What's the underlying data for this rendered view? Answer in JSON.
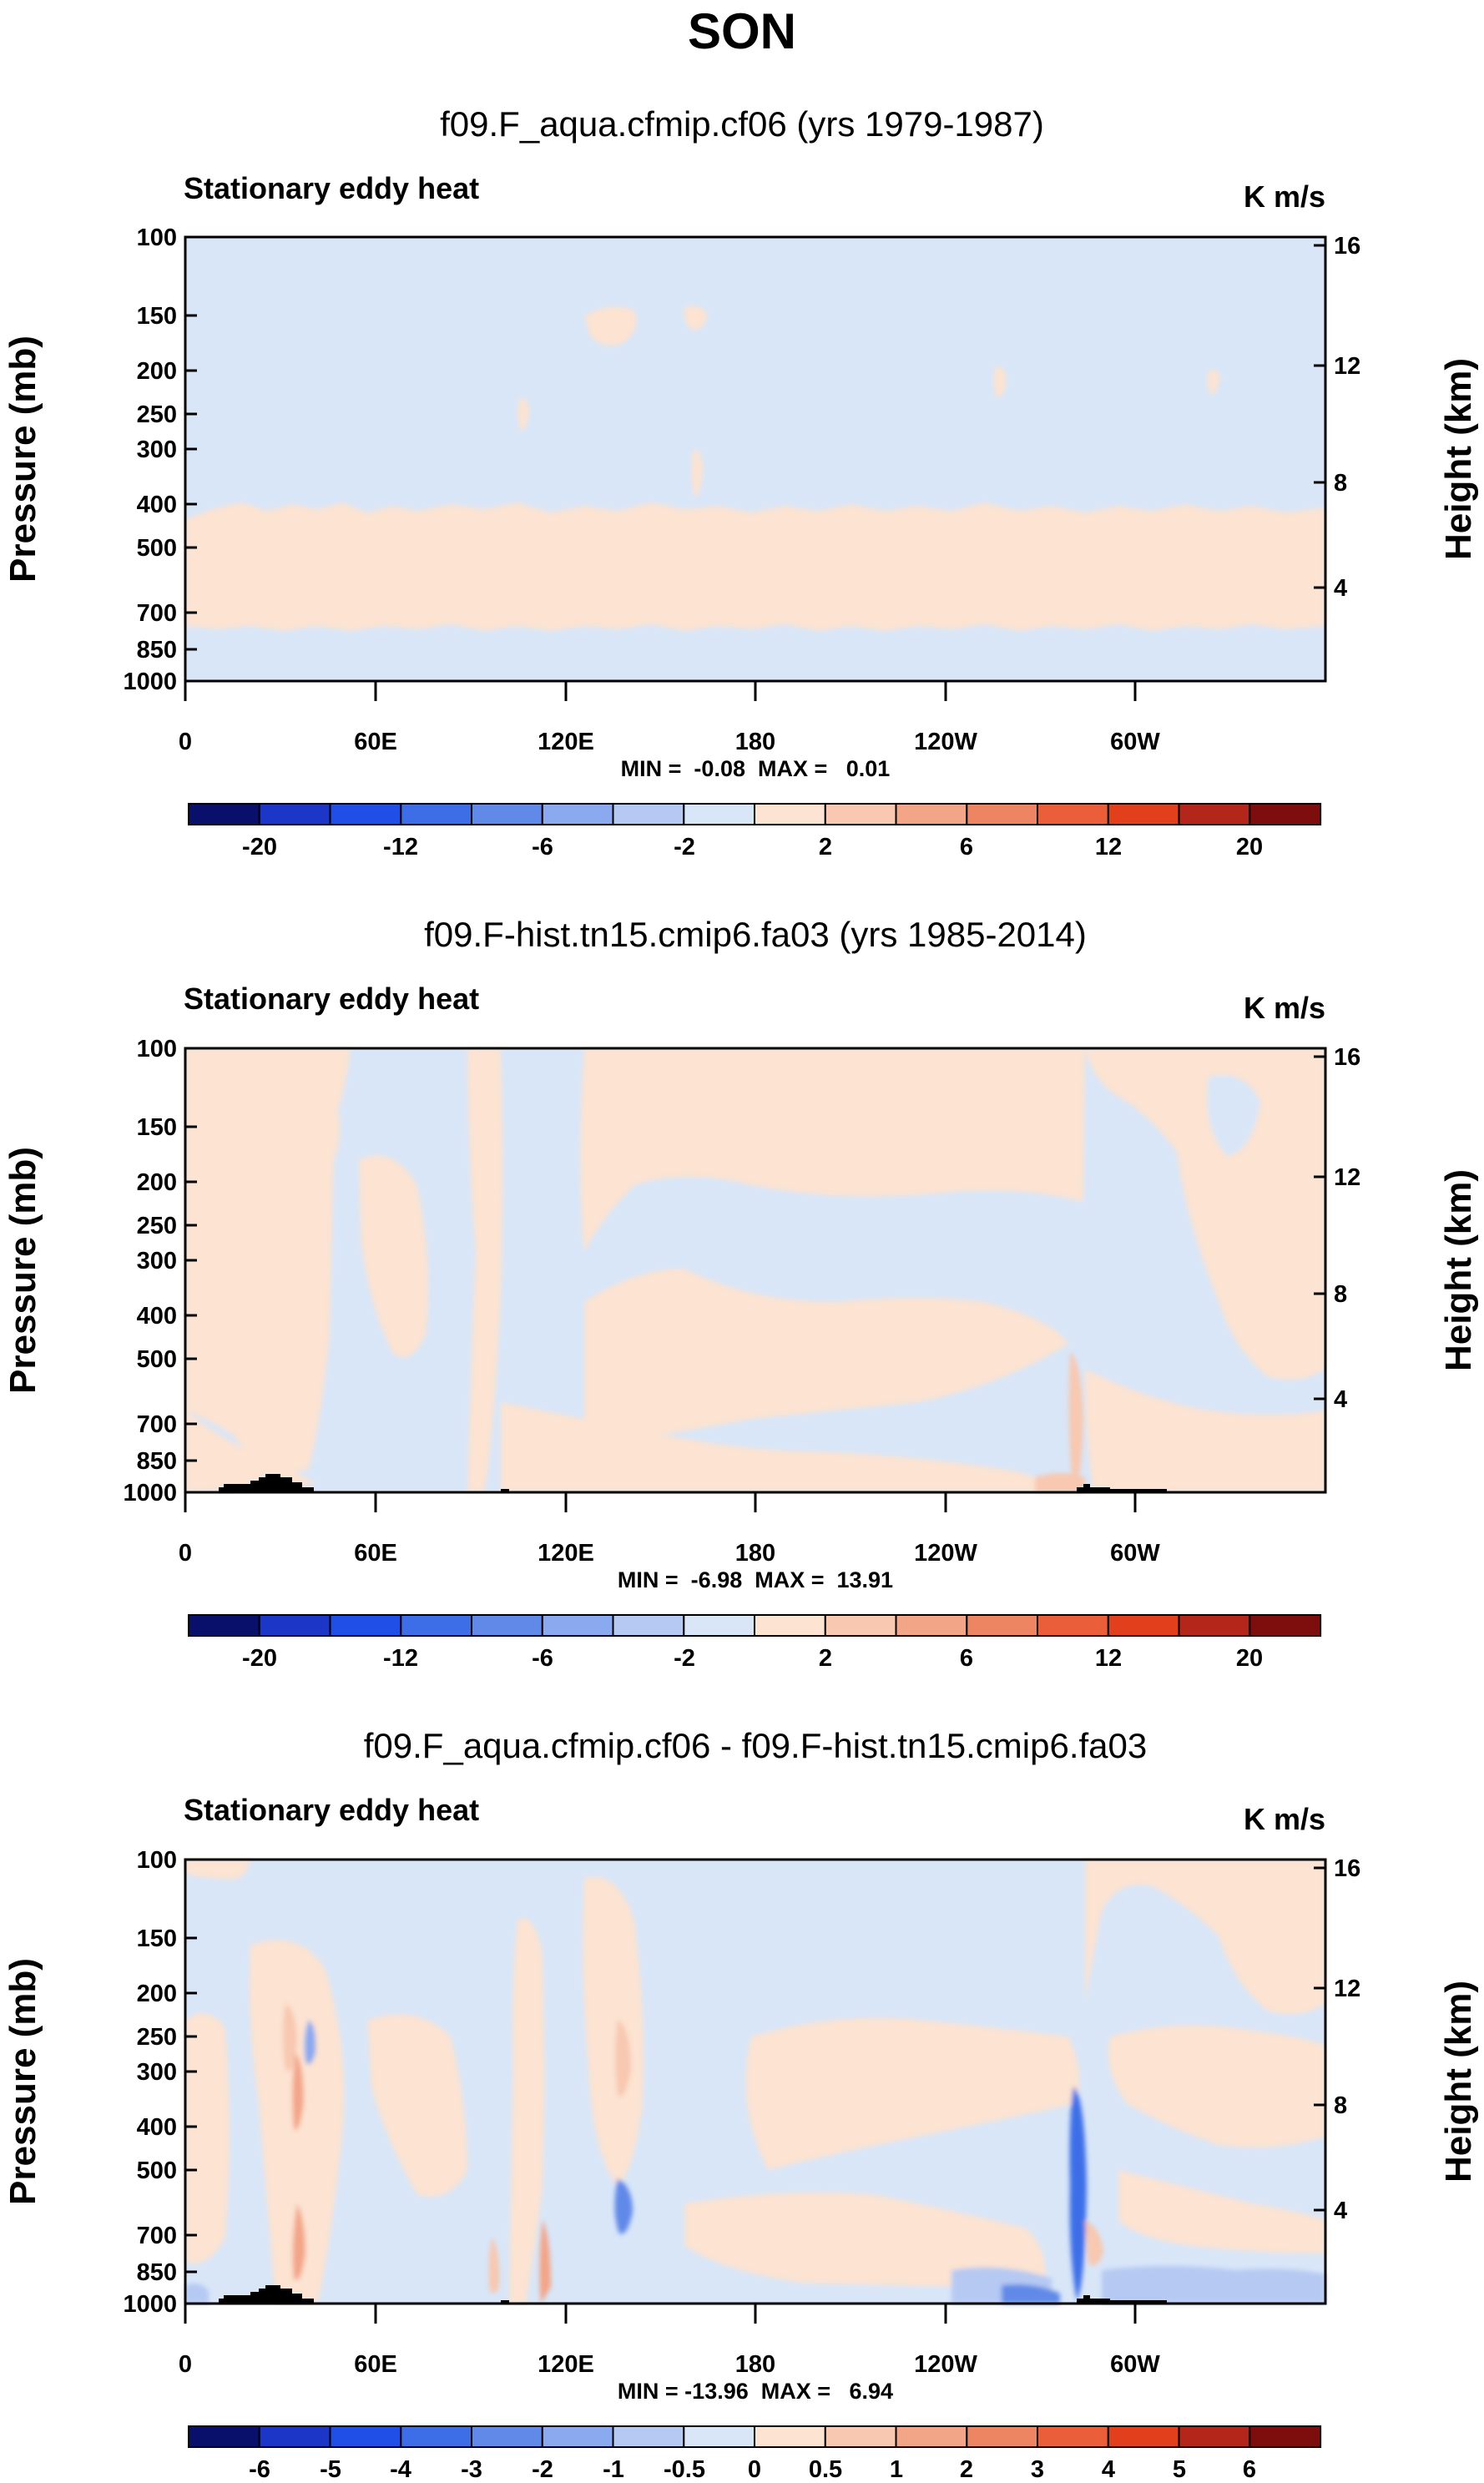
{
  "figure_title": "SON",
  "chart_data": [
    {
      "type": "heatmap",
      "title": "f09.F_aqua.cfmip.cf06 (yrs 1979-1987)",
      "variable": "Stationary eddy heat",
      "units": "K m/s",
      "ylabel": "Pressure (mb)",
      "ylabel_right": "Height (km)",
      "x_ticks": [
        "0",
        "60E",
        "120E",
        "180",
        "120W",
        "60W"
      ],
      "y_ticks": [
        "100",
        "150",
        "200",
        "250",
        "300",
        "400",
        "500",
        "700",
        "850",
        "1000"
      ],
      "y_ticks_right": [
        "16",
        "12",
        "8",
        "4"
      ],
      "stats": "MIN =  -0.08  MAX =   0.01",
      "colorbar_labels": [
        "-20",
        "-12",
        "-6",
        "-2",
        "2",
        "6",
        "12",
        "20"
      ],
      "colorbar_colors": [
        "#08106b",
        "#1c36c8",
        "#1f4fe6",
        "#3d6ee8",
        "#6189e8",
        "#8aa9ee",
        "#b5c9f3",
        "#d8e6f8",
        "#fce3d2",
        "#f8c8b0",
        "#f3a588",
        "#ee8562",
        "#ea5e3a",
        "#e23f1c",
        "#b4261a",
        "#7e0e0e"
      ],
      "regions": [
        {
          "name": "positive band",
          "color": "#fce3d2",
          "p_top": 460,
          "p_bottom": 790,
          "lon_start": 0,
          "lon_end": 360
        },
        {
          "name": "background",
          "color": "#d8e6f8",
          "value": 0
        }
      ]
    },
    {
      "type": "heatmap",
      "title": "f09.F-hist.tn15.cmip6.fa03 (yrs 1985-2014)",
      "variable": "Stationary eddy heat",
      "units": "K m/s",
      "ylabel": "Pressure (mb)",
      "ylabel_right": "Height (km)",
      "x_ticks": [
        "0",
        "60E",
        "120E",
        "180",
        "120W",
        "60W"
      ],
      "y_ticks": [
        "100",
        "150",
        "200",
        "250",
        "300",
        "400",
        "500",
        "700",
        "850",
        "1000"
      ],
      "y_ticks_right": [
        "16",
        "12",
        "8",
        "4"
      ],
      "stats": "MIN =  -6.98  MAX =  13.91",
      "colorbar_labels": [
        "-20",
        "-12",
        "-6",
        "-2",
        "2",
        "6",
        "12",
        "20"
      ],
      "colorbar_colors": [
        "#08106b",
        "#1c36c8",
        "#1f4fe6",
        "#3d6ee8",
        "#6189e8",
        "#8aa9ee",
        "#b5c9f3",
        "#d8e6f8",
        "#fce3d2",
        "#f8c8b0",
        "#f3a588",
        "#ee8562",
        "#ea5e3a",
        "#e23f1c",
        "#b4261a",
        "#7e0e0e"
      ],
      "regions": [
        {
          "name": "positive columns",
          "color": "#fce3d2",
          "lon_ranges": [
            [
              5,
              50
            ],
            [
              85,
              96
            ],
            [
              115,
              160
            ],
            [
              165,
              240
            ],
            [
              290,
              360
            ]
          ]
        },
        {
          "name": "strong positive",
          "color": "#f8c8b0",
          "lon_ranges": [
            [
              279,
              284
            ]
          ]
        },
        {
          "name": "background",
          "color": "#d8e6f8",
          "value": 0
        }
      ]
    },
    {
      "type": "heatmap",
      "title": "f09.F_aqua.cfmip.cf06 - f09.F-hist.tn15.cmip6.fa03",
      "variable": "Stationary eddy heat",
      "units": "K m/s",
      "ylabel": "Pressure (mb)",
      "ylabel_right": "Height (km)",
      "x_ticks": [
        "0",
        "60E",
        "120E",
        "180",
        "120W",
        "60W"
      ],
      "y_ticks": [
        "100",
        "150",
        "200",
        "250",
        "300",
        "400",
        "500",
        "700",
        "850",
        "1000"
      ],
      "y_ticks_right": [
        "16",
        "12",
        "8",
        "4"
      ],
      "stats": "MIN = -13.96  MAX =   6.94",
      "colorbar_labels": [
        "-6",
        "-5",
        "-4",
        "-3",
        "-2",
        "-1",
        "-0.5",
        "0",
        "0.5",
        "1",
        "2",
        "3",
        "4",
        "5",
        "6"
      ],
      "colorbar_colors": [
        "#08106b",
        "#1c36c8",
        "#1f4fe6",
        "#3d6ee8",
        "#6189e8",
        "#8aa9ee",
        "#b5c9f3",
        "#d8e6f8",
        "#fce3d2",
        "#f8c8b0",
        "#f3a588",
        "#ee8562",
        "#ea5e3a",
        "#e23f1c",
        "#b4261a",
        "#7e0e0e"
      ],
      "regions": [
        {
          "name": "positive columns",
          "color": "#fce3d2",
          "lon_ranges": [
            [
              40,
              60
            ],
            [
              100,
              155
            ],
            [
              200,
              270
            ],
            [
              300,
              360
            ]
          ]
        },
        {
          "name": "negative cores",
          "color": "#3d6ee8",
          "lon_ranges": [
            [
              280,
              284
            ]
          ]
        },
        {
          "name": "positive cores",
          "color": "#f3a588",
          "lon_ranges": [
            [
              36,
              40
            ],
            [
              114,
              117
            ],
            [
              140,
              146
            ]
          ]
        },
        {
          "name": "background",
          "color": "#d8e6f8",
          "value": 0
        }
      ]
    }
  ]
}
